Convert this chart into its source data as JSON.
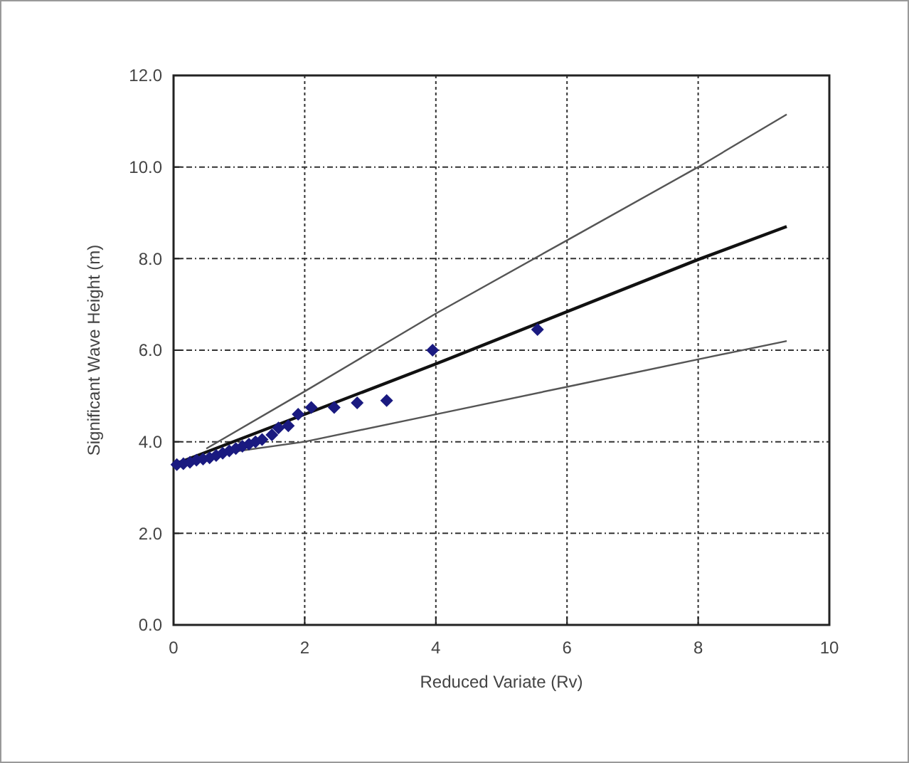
{
  "chart_data": {
    "type": "scatter",
    "xlabel": "Reduced Variate (Rv)",
    "ylabel": "Significant Wave Height (m)",
    "xlim": [
      0,
      10
    ],
    "xticks": [
      0,
      2,
      4,
      6,
      8,
      10
    ],
    "ylim": [
      0,
      12
    ],
    "yticks": [
      {
        "value": 0,
        "label": "0.0"
      },
      {
        "value": 2,
        "label": "2.0"
      },
      {
        "value": 4,
        "label": "4.0"
      },
      {
        "value": 6,
        "label": "6.0"
      },
      {
        "value": 8,
        "label": "8.0"
      },
      {
        "value": 10,
        "label": "10.0"
      },
      {
        "value": 12,
        "label": "12.0"
      }
    ],
    "grid": true,
    "series": [
      {
        "marker": "diamond",
        "color": "#1a1a80",
        "x": [
          0.05,
          0.15,
          0.25,
          0.35,
          0.45,
          0.55,
          0.65,
          0.75,
          0.85,
          0.95,
          1.05,
          1.15,
          1.25,
          1.35,
          1.5,
          1.6,
          1.75,
          1.9,
          2.1,
          2.45,
          2.8,
          3.25,
          3.95,
          5.55
        ],
        "values": [
          3.5,
          3.52,
          3.55,
          3.6,
          3.62,
          3.65,
          3.7,
          3.75,
          3.8,
          3.85,
          3.9,
          3.95,
          4.0,
          4.05,
          4.15,
          4.3,
          4.35,
          4.6,
          4.75,
          4.75,
          4.85,
          4.9,
          6.0,
          6.45
        ]
      },
      {
        "type": "line",
        "color": "#111111",
        "x": [
          0,
          4,
          8,
          9.35
        ],
        "values": [
          3.5,
          5.7,
          7.98,
          8.7
        ]
      },
      {
        "type": "line",
        "color": "#555555",
        "x": [
          0.5,
          2,
          4,
          6,
          8,
          9.35
        ],
        "values": [
          3.85,
          5.1,
          6.8,
          8.4,
          10.0,
          11.15
        ]
      },
      {
        "type": "line",
        "color": "#555555",
        "x": [
          0.5,
          2,
          4,
          6,
          8,
          9.35
        ],
        "values": [
          3.7,
          4.0,
          4.6,
          5.2,
          5.8,
          6.2
        ]
      }
    ]
  }
}
